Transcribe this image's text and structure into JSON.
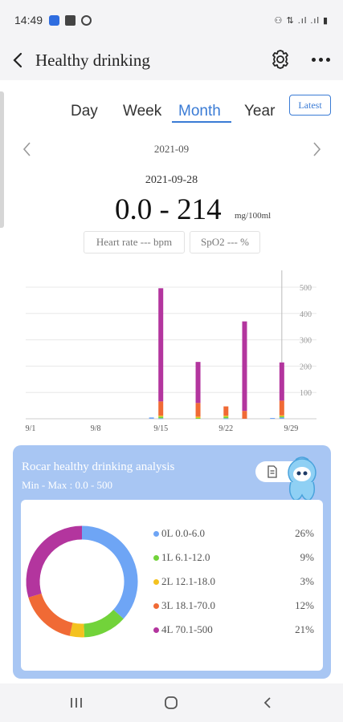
{
  "status_bar": {
    "time": "14:49",
    "right_text": "⚇ ⇅ .ıl .ıl ▮"
  },
  "app_bar": {
    "title": "Healthy drinking"
  },
  "tabs": [
    {
      "label": "Day",
      "active": false
    },
    {
      "label": "Week",
      "active": false
    },
    {
      "label": "Month",
      "active": true
    },
    {
      "label": "Year",
      "active": false
    }
  ],
  "latest_button": "Latest",
  "period": "2021-09",
  "selected": {
    "date": "2021-09-28",
    "range": "0.0 - 214",
    "unit": "mg/100ml"
  },
  "metrics": {
    "heart_rate": "Heart rate --- bpm",
    "spo2": "SpO2 --- %"
  },
  "colors": {
    "accent": "#3a7bd5",
    "level0": "#6ea5f5",
    "level1": "#72d33a",
    "level2": "#f4c21f",
    "level3": "#f06a35",
    "level4": "#b3359e"
  },
  "chart_data": {
    "type": "bar",
    "stacked": true,
    "x_tick_labels": [
      "9/1",
      "9/8",
      "9/15",
      "9/22",
      "9/29"
    ],
    "y_tick_labels": [
      "100",
      "200",
      "300",
      "400",
      "500"
    ],
    "ylim": [
      0,
      500
    ],
    "grid": true,
    "categories": [
      "9/1",
      "9/2",
      "9/3",
      "9/4",
      "9/5",
      "9/6",
      "9/7",
      "9/8",
      "9/9",
      "9/10",
      "9/11",
      "9/12",
      "9/13",
      "9/14",
      "9/15",
      "9/16",
      "9/17",
      "9/18",
      "9/19",
      "9/20",
      "9/21",
      "9/22",
      "9/23",
      "9/24",
      "9/25",
      "9/26",
      "9/27",
      "9/28",
      "9/29",
      "9/30"
    ],
    "series": [
      {
        "level": "0L",
        "values": [
          0,
          0,
          0,
          0,
          0,
          0,
          0,
          0,
          0,
          0,
          0,
          0,
          0,
          5,
          2,
          0,
          0,
          0,
          0,
          0,
          0,
          2,
          0,
          0,
          0,
          0,
          3,
          5,
          0,
          0
        ]
      },
      {
        "level": "1L",
        "values": [
          0,
          0,
          0,
          0,
          0,
          0,
          0,
          0,
          0,
          0,
          0,
          0,
          0,
          0,
          6,
          0,
          0,
          0,
          3,
          0,
          0,
          6,
          0,
          0,
          0,
          0,
          0,
          4,
          0,
          0
        ]
      },
      {
        "level": "2L",
        "values": [
          0,
          0,
          0,
          0,
          0,
          0,
          0,
          0,
          0,
          0,
          0,
          0,
          0,
          0,
          4,
          0,
          0,
          0,
          5,
          0,
          0,
          4,
          0,
          0,
          0,
          0,
          0,
          4,
          0,
          0
        ]
      },
      {
        "level": "3L",
        "values": [
          0,
          0,
          0,
          0,
          0,
          0,
          0,
          0,
          0,
          0,
          0,
          0,
          0,
          0,
          54,
          0,
          0,
          0,
          52,
          0,
          0,
          35,
          0,
          30,
          0,
          0,
          0,
          56,
          0,
          0
        ]
      },
      {
        "level": "4L",
        "values": [
          0,
          0,
          0,
          0,
          0,
          0,
          0,
          0,
          0,
          0,
          0,
          0,
          0,
          0,
          430,
          0,
          0,
          0,
          156,
          0,
          0,
          0,
          0,
          340,
          0,
          0,
          0,
          145,
          0,
          0
        ]
      }
    ],
    "selected_day": "9/28"
  },
  "analysis": {
    "title": "Rocar healthy drinking analysis",
    "min_max": "Min - Max :   0.0 - 500",
    "donut": [
      {
        "label": "0L 0.0-6.0",
        "percent": "26%",
        "value": 26
      },
      {
        "label": "1L 6.1-12.0",
        "percent": "9%",
        "value": 9
      },
      {
        "label": "2L 12.1-18.0",
        "percent": "3%",
        "value": 3
      },
      {
        "label": "3L 18.1-70.0",
        "percent": "12%",
        "value": 12
      },
      {
        "label": "4L 70.1-500",
        "percent": "21%",
        "value": 21
      }
    ]
  }
}
